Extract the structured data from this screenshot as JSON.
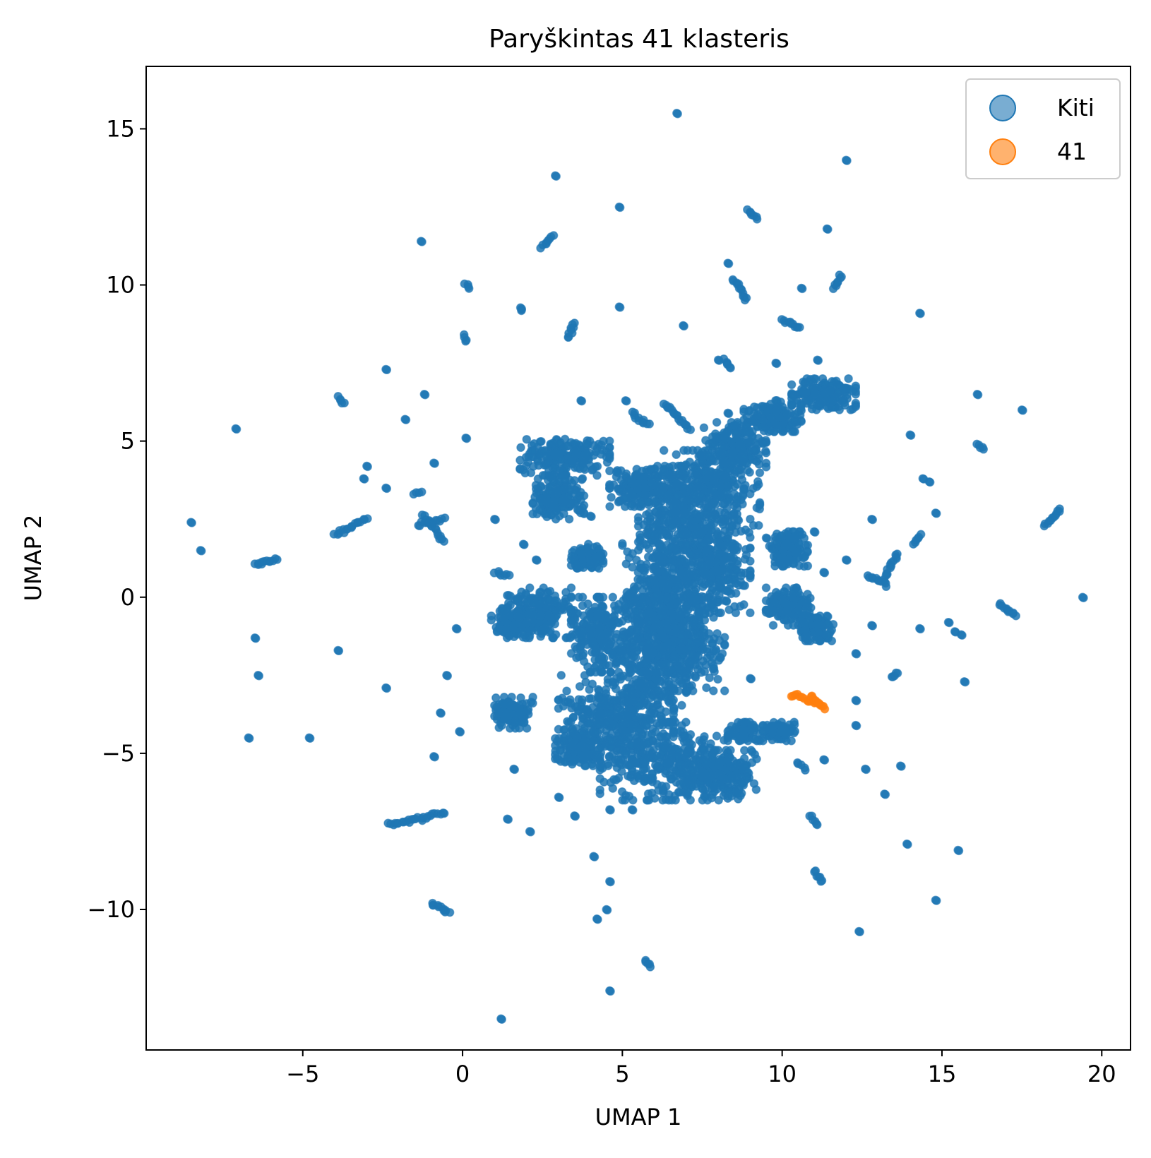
{
  "chart_data": {
    "type": "scatter",
    "title": "Paryškintas 41 klasteris",
    "xlabel": "UMAP 1",
    "ylabel": "UMAP 2",
    "xlim": [
      -9.9,
      20.9
    ],
    "ylim": [
      -14.5,
      17.0
    ],
    "xticks": [
      -5,
      0,
      5,
      10,
      15,
      20
    ],
    "xtick_labels": [
      "−5",
      "0",
      "5",
      "10",
      "15",
      "20"
    ],
    "yticks": [
      -10,
      -5,
      0,
      5,
      10,
      15
    ],
    "ytick_labels": [
      "−10",
      "−5",
      "0",
      "5",
      "10",
      "15"
    ],
    "grid": false,
    "legend_position": "top-right",
    "colors": {
      "others": "#1f77b4",
      "highlight": "#ff7f0e"
    },
    "series": [
      {
        "name": "Kiti",
        "color": "#1f77b4",
        "blobs": [
          [
            3.2,
            4.5,
            1.4,
            0.6
          ],
          [
            3.0,
            3.2,
            0.8,
            0.7
          ],
          [
            5.6,
            3.5,
            1.0,
            0.6
          ],
          [
            6.8,
            2.0,
            1.3,
            2.2
          ],
          [
            6.2,
            0.0,
            1.2,
            2.0
          ],
          [
            5.7,
            -2.0,
            1.3,
            2.0
          ],
          [
            4.8,
            -3.8,
            1.8,
            1.4
          ],
          [
            6.3,
            -5.3,
            2.0,
            1.2
          ],
          [
            7.8,
            3.5,
            1.5,
            1.2
          ],
          [
            8.5,
            4.8,
            1.0,
            0.8
          ],
          [
            9.7,
            5.8,
            0.9,
            0.5
          ],
          [
            11.3,
            6.5,
            1.0,
            0.5
          ],
          [
            8.0,
            -5.7,
            1.2,
            0.8
          ],
          [
            4.2,
            -1.2,
            0.8,
            1.2
          ],
          [
            2.4,
            -0.5,
            1.0,
            0.8
          ],
          [
            1.5,
            -0.8,
            0.6,
            0.5
          ],
          [
            3.6,
            -4.8,
            0.7,
            0.6
          ],
          [
            10.2,
            1.5,
            0.6,
            0.6
          ],
          [
            10.2,
            -0.3,
            0.7,
            0.6
          ],
          [
            11.1,
            -1.0,
            0.5,
            0.4
          ],
          [
            8.8,
            -4.3,
            0.5,
            0.3
          ],
          [
            9.9,
            -4.3,
            0.5,
            0.3
          ],
          [
            1.6,
            -3.7,
            0.6,
            0.5
          ],
          [
            3.9,
            1.3,
            0.5,
            0.4
          ],
          [
            8.0,
            1.0,
            1.0,
            1.5
          ],
          [
            7.0,
            -1.5,
            1.2,
            1.5
          ]
        ],
        "lines": [
          [
            -6.5,
            1.1,
            -5.8,
            1.2
          ],
          [
            -4.0,
            2.0,
            -3.0,
            2.5
          ],
          [
            -2.3,
            -7.3,
            -0.6,
            -6.9
          ],
          [
            -1.4,
            2.3,
            -0.6,
            2.5
          ],
          [
            -1.2,
            2.6,
            -0.6,
            1.8
          ],
          [
            -1.0,
            -9.8,
            -0.4,
            -10.1
          ],
          [
            2.5,
            11.2,
            2.8,
            11.6
          ],
          [
            3.3,
            8.3,
            3.5,
            8.8
          ],
          [
            8.5,
            10.2,
            8.9,
            9.5
          ],
          [
            8.9,
            12.4,
            9.2,
            12.1
          ],
          [
            11.6,
            9.9,
            11.8,
            10.3
          ],
          [
            10.0,
            8.9,
            10.6,
            8.6
          ],
          [
            16.1,
            4.9,
            16.3,
            4.7
          ],
          [
            16.8,
            -0.2,
            17.3,
            -0.6
          ],
          [
            18.2,
            2.3,
            18.7,
            2.8
          ],
          [
            14.1,
            1.7,
            14.3,
            2.0
          ],
          [
            13.6,
            1.4,
            13.2,
            0.6
          ],
          [
            12.7,
            0.7,
            13.3,
            0.4
          ],
          [
            13.4,
            -2.6,
            13.6,
            -2.4
          ],
          [
            10.9,
            -7.0,
            11.1,
            -7.3
          ],
          [
            11.0,
            -8.8,
            11.3,
            -9.1
          ],
          [
            5.7,
            -11.6,
            5.9,
            -11.8
          ],
          [
            5.3,
            5.9,
            5.8,
            5.5
          ],
          [
            6.3,
            6.2,
            7.1,
            5.4
          ],
          [
            -3.9,
            6.4,
            -3.7,
            6.2
          ],
          [
            0.1,
            10.1,
            0.2,
            9.9
          ],
          [
            1.8,
            9.3,
            1.9,
            9.2
          ],
          [
            0.0,
            8.4,
            0.1,
            8.2
          ],
          [
            8.2,
            7.6,
            8.4,
            7.3
          ],
          [
            10.4,
            0.0,
            10.8,
            -1.3
          ],
          [
            10.5,
            -5.3,
            10.7,
            -5.5
          ],
          [
            -1.5,
            3.3,
            -1.3,
            3.4
          ],
          [
            1.0,
            0.8,
            1.4,
            0.7
          ]
        ],
        "points": [
          [
            -8.5,
            2.4
          ],
          [
            -8.2,
            1.5
          ],
          [
            -7.1,
            5.4
          ],
          [
            -6.5,
            -1.3
          ],
          [
            -6.4,
            -2.5
          ],
          [
            -6.7,
            -4.5
          ],
          [
            -4.8,
            -4.5
          ],
          [
            -3.9,
            -1.7
          ],
          [
            -3.0,
            4.2
          ],
          [
            -3.1,
            3.8
          ],
          [
            -2.4,
            7.3
          ],
          [
            -2.4,
            3.5
          ],
          [
            -2.4,
            -2.9
          ],
          [
            -1.8,
            5.7
          ],
          [
            -1.2,
            6.5
          ],
          [
            -1.3,
            11.4
          ],
          [
            -0.9,
            4.3
          ],
          [
            -0.9,
            -5.1
          ],
          [
            -0.7,
            -3.7
          ],
          [
            -0.5,
            -2.5
          ],
          [
            -0.1,
            -4.3
          ],
          [
            -0.2,
            -1.0
          ],
          [
            0.1,
            5.1
          ],
          [
            1.0,
            2.5
          ],
          [
            1.3,
            -3.8
          ],
          [
            1.4,
            -7.1
          ],
          [
            1.6,
            -5.5
          ],
          [
            1.2,
            -13.5
          ],
          [
            2.1,
            -7.5
          ],
          [
            2.9,
            13.5
          ],
          [
            3.5,
            -7.0
          ],
          [
            3.7,
            6.3
          ],
          [
            3.6,
            2.8
          ],
          [
            4.1,
            -8.3
          ],
          [
            4.2,
            -10.3
          ],
          [
            4.5,
            -10.0
          ],
          [
            4.6,
            -9.1
          ],
          [
            4.6,
            -12.6
          ],
          [
            4.9,
            12.5
          ],
          [
            4.9,
            9.3
          ],
          [
            5.1,
            6.3
          ],
          [
            5.3,
            -6.8
          ],
          [
            6.7,
            15.5
          ],
          [
            6.9,
            8.7
          ],
          [
            8.3,
            5.9
          ],
          [
            8.3,
            10.7
          ],
          [
            9.0,
            -2.6
          ],
          [
            10.6,
            9.9
          ],
          [
            11.0,
            2.1
          ],
          [
            11.3,
            0.8
          ],
          [
            11.4,
            -0.6
          ],
          [
            11.3,
            -5.2
          ],
          [
            11.4,
            11.8
          ],
          [
            12.0,
            14.0
          ],
          [
            12.0,
            1.2
          ],
          [
            12.3,
            -1.8
          ],
          [
            12.3,
            -3.3
          ],
          [
            12.3,
            -4.1
          ],
          [
            12.6,
            -5.5
          ],
          [
            12.8,
            2.5
          ],
          [
            12.8,
            -0.9
          ],
          [
            12.4,
            -10.7
          ],
          [
            13.2,
            -6.3
          ],
          [
            13.7,
            -5.4
          ],
          [
            13.9,
            -7.9
          ],
          [
            14.0,
            5.2
          ],
          [
            14.3,
            9.1
          ],
          [
            14.4,
            3.8
          ],
          [
            14.6,
            3.7
          ],
          [
            14.8,
            2.7
          ],
          [
            14.3,
            -1.0
          ],
          [
            14.8,
            -9.7
          ],
          [
            15.2,
            -0.8
          ],
          [
            15.4,
            -1.1
          ],
          [
            15.6,
            -1.2
          ],
          [
            15.5,
            -8.1
          ],
          [
            15.7,
            -2.7
          ],
          [
            17.5,
            6.0
          ],
          [
            19.4,
            0.0
          ],
          [
            16.1,
            6.5
          ],
          [
            8.0,
            7.6
          ],
          [
            9.8,
            7.5
          ],
          [
            11.1,
            7.6
          ],
          [
            7.6,
            1.5
          ],
          [
            9.5,
            1.9
          ],
          [
            1.9,
            1.7
          ],
          [
            2.3,
            1.2
          ],
          [
            4.0,
            2.6
          ],
          [
            4.6,
            -6.8
          ],
          [
            3.0,
            -6.4
          ]
        ]
      },
      {
        "name": "41",
        "color": "#ff7f0e",
        "lines": [
          [
            10.3,
            -3.15,
            10.7,
            -3.2
          ],
          [
            10.8,
            -3.3,
            11.35,
            -3.55
          ],
          [
            10.9,
            -3.15,
            11.1,
            -3.4
          ]
        ]
      }
    ]
  }
}
